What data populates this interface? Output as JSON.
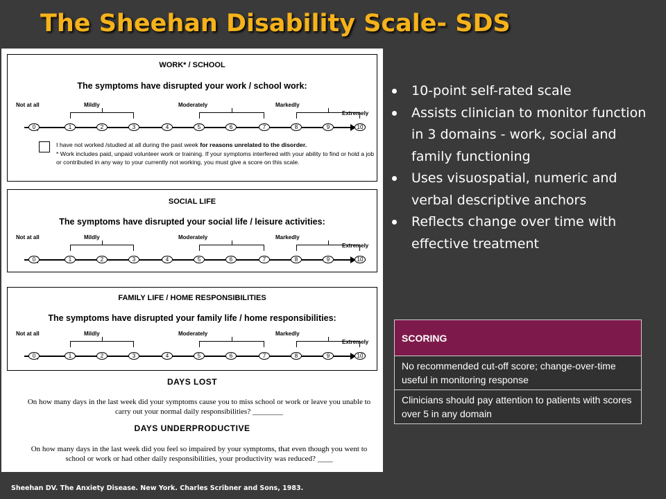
{
  "slide": {
    "title": "The Sheehan Disability Scale- SDS",
    "citation": "Sheehan DV. The Anxiety Disease. New York. Charles Scribner and Sons, 1983."
  },
  "form": {
    "scale_labels": {
      "not_at_all": "Not at all",
      "mildly": "Mildly",
      "moderately": "Moderately",
      "markedly": "Markedly",
      "extremely": "Extremely"
    },
    "scale_points": [
      "0",
      "1",
      "2",
      "3",
      "4",
      "5",
      "6",
      "7",
      "8",
      "9",
      "10"
    ],
    "work": {
      "title": "WORK* / SCHOOL",
      "question": "The symptoms have disrupted your work / school work:",
      "note_plain": "I have not worked /studied at all during the past week ",
      "note_bold": "for reasons unrelated to the disorder.",
      "note_rest": "* Work includes paid, unpaid volunteer work or training. If your symptoms interfered with your ability to find or hold a job or contributed in any way to your currently not working, you must give a score on this scale."
    },
    "social": {
      "title": "SOCIAL LIFE",
      "question": "The symptoms have disrupted your social life / leisure activities:"
    },
    "family": {
      "title": "FAMILY LIFE / HOME RESPONSIBILITIES",
      "question": "The symptoms have disrupted your family life / home responsibilities:"
    },
    "days_lost": {
      "heading": "DAYS LOST",
      "text": "On how many days in the last week did your symptoms cause you to miss school or work or leave you unable to carry out your normal daily responsibilities? ________"
    },
    "days_underproductive": {
      "heading": "DAYS UNDERPRODUCTIVE",
      "text": "On how many days in the last week did you feel so impaired by your symptoms, that even though you went to school or work or had other daily responsibilities, your productivity was reduced? ____"
    }
  },
  "bullets": [
    "10-point self-rated scale",
    "Assists clinician to monitor function in 3 domains - work, social and family functioning",
    "Uses visuospatial, numeric and verbal descriptive anchors",
    "Reflects change over time with effective treatment"
  ],
  "scoring": {
    "header": "SCORING",
    "rows": [
      "No recommended cut-off score; change-over-time useful in monitoring response",
      "Clinicians should pay attention to patients with scores over 5 in any domain"
    ]
  },
  "colors": {
    "title": "#f5b21a",
    "background": "#3a3a3a",
    "scoring_header": "#7e1a4b"
  }
}
